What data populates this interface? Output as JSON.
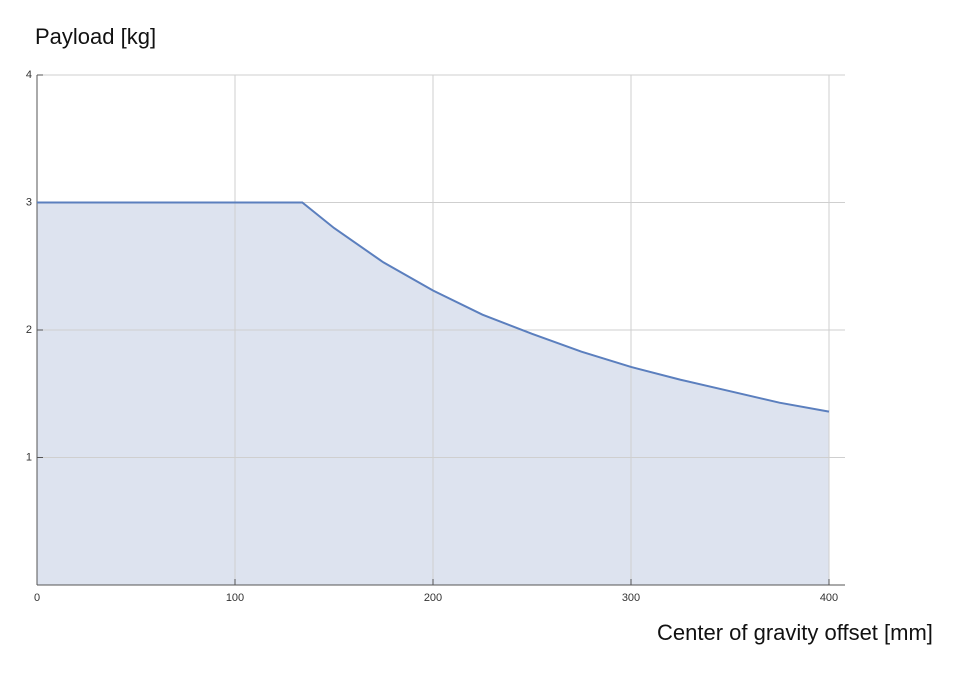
{
  "chart_data": {
    "type": "area",
    "ylabel": "Payload [kg]",
    "xlabel": "Center of gravity offset [mm]",
    "x": [
      0,
      134,
      150,
      175,
      200,
      225,
      250,
      275,
      300,
      325,
      350,
      375,
      400
    ],
    "values": [
      3,
      3,
      2.8,
      2.53,
      2.31,
      2.12,
      1.97,
      1.83,
      1.71,
      1.61,
      1.52,
      1.43,
      1.36
    ],
    "color": "#5b7fbe",
    "fill": "#dde3ef",
    "xlim": [
      0,
      400
    ],
    "ylim": [
      0,
      4
    ],
    "xticks": [
      0,
      100,
      200,
      300,
      400
    ],
    "yticks": [
      1,
      2,
      3,
      4
    ],
    "grid": true
  }
}
